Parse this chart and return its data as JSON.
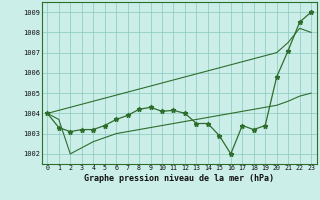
{
  "xlabel": "Graphe pression niveau de la mer (hPa)",
  "hours": [
    0,
    1,
    2,
    3,
    4,
    5,
    6,
    7,
    8,
    9,
    10,
    11,
    12,
    13,
    14,
    15,
    16,
    17,
    18,
    19,
    20,
    21,
    22,
    23
  ],
  "pressure": [
    1004.0,
    1003.3,
    1003.1,
    1003.2,
    1003.2,
    1003.4,
    1003.7,
    1003.9,
    1004.2,
    1004.3,
    1004.1,
    1004.15,
    1004.0,
    1003.5,
    1003.5,
    1002.9,
    1002.0,
    1003.4,
    1003.2,
    1003.4,
    1005.8,
    1007.1,
    1008.5,
    1009.0
  ],
  "upper_env": [
    1004.0,
    1004.15,
    1004.3,
    1004.45,
    1004.6,
    1004.75,
    1004.9,
    1005.05,
    1005.2,
    1005.35,
    1005.5,
    1005.65,
    1005.8,
    1005.95,
    1006.1,
    1006.25,
    1006.4,
    1006.55,
    1006.7,
    1006.85,
    1007.0,
    1007.5,
    1008.2,
    1008.0
  ],
  "lower_env": [
    1004.0,
    1003.7,
    1002.0,
    1002.3,
    1002.6,
    1002.8,
    1003.0,
    1003.1,
    1003.2,
    1003.3,
    1003.4,
    1003.5,
    1003.6,
    1003.7,
    1003.8,
    1003.9,
    1004.0,
    1004.1,
    1004.2,
    1004.3,
    1004.4,
    1004.6,
    1004.85,
    1005.0
  ],
  "line_color": "#2d6e2d",
  "bg_color": "#cceee8",
  "grid_color": "#88c8be",
  "ylim": [
    1001.5,
    1009.5
  ],
  "xlim": [
    -0.5,
    23.5
  ],
  "yticks": [
    1002,
    1003,
    1004,
    1005,
    1006,
    1007,
    1008,
    1009
  ]
}
